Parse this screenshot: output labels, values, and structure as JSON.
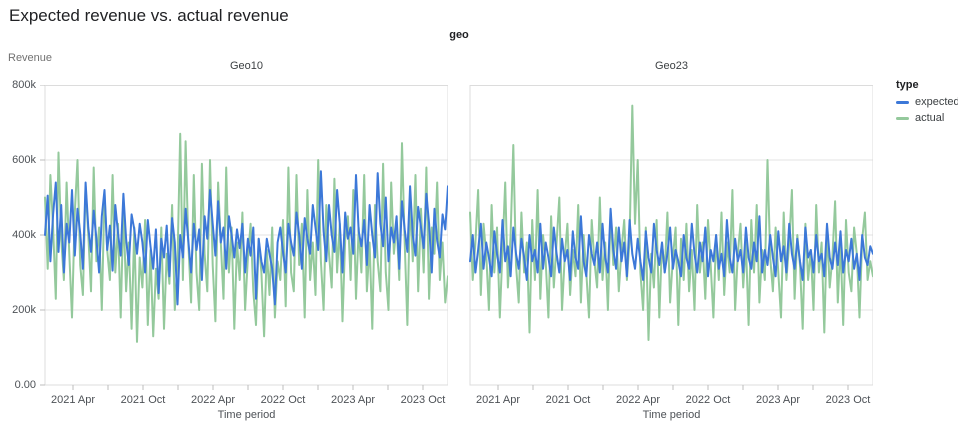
{
  "page": {
    "title": "Expected revenue vs. actual revenue"
  },
  "facet_header": "geo",
  "axes": {
    "y_title": "Revenue",
    "x_title": "Time period"
  },
  "legend": {
    "title": "type",
    "items": [
      {
        "label": "expected",
        "color": "#3c78d8"
      },
      {
        "label": "actual",
        "color": "#94c99c"
      }
    ]
  },
  "chart_data": {
    "type": "line",
    "title": "Expected revenue vs. actual revenue",
    "facet_by": "geo",
    "xlabel": "Time period",
    "ylabel": "Revenue",
    "ylim": [
      0,
      800000
    ],
    "values_unit": "thousands (k) of revenue",
    "x_unit": "weekly points, Jan 2021 - Dec 2023",
    "grid": "horizontal gridlines at 200k, 400k, 600k",
    "legend_position": "top-right",
    "y_tick_labels": [
      "800k",
      "600k",
      "400k",
      "200k",
      "0.00"
    ],
    "x_tick_labels": [
      "2021 Apr",
      "2021 Oct",
      "2022 Apr",
      "2022 Oct",
      "2023 Apr",
      "2023 Oct"
    ],
    "colors": {
      "expected": "#3c78d8",
      "actual": "#94c99c"
    },
    "facets": [
      {
        "name": "Geo10",
        "series": [
          {
            "name": "expected",
            "values": [
              400,
              505,
              330,
              455,
              540,
              355,
              480,
              300,
              430,
              380,
              520,
              345,
              470,
              405,
              310,
              540,
              420,
              355,
              465,
              390,
              300,
              450,
              520,
              360,
              425,
              305,
              480,
              405,
              345,
              510,
              390,
              320,
              455,
              415,
              350,
              430,
              380,
              300,
              440,
              370,
              310,
              415,
              245,
              390,
              340,
              425,
              290,
              445,
              380,
              215,
              400,
              340,
              470,
              385,
              300,
              430,
              360,
              415,
              280,
              450,
              390,
              520,
              430,
              345,
              490,
              380,
              420,
              310,
              450,
              400,
              340,
              415,
              365,
              430,
              300,
              390,
              345,
              420,
              230,
              390,
              330,
              300,
              390,
              350,
              310,
              215,
              380,
              420,
              355,
              300,
              430,
              380,
              345,
              460,
              400,
              310,
              445,
              390,
              350,
              480,
              420,
              360,
              570,
              410,
              330,
              480,
              400,
              355,
              520,
              430,
              300,
              460,
              390,
              420,
              350,
              560,
              410,
              370,
              440,
              320,
              480,
              400,
              340,
              565,
              430,
              370,
              500,
              330,
              420,
              380,
              450,
              310,
              490,
              415,
              355,
              530,
              400,
              345,
              475,
              420,
              365,
              510,
              430,
              300,
              470,
              385,
              340,
              455,
              415,
              530
            ]
          },
          {
            "name": "actual",
            "values": [
              500,
              310,
              560,
              420,
              230,
              620,
              390,
              280,
              540,
              350,
              180,
              460,
              600,
              320,
              240,
              530,
              400,
              250,
              580,
              330,
              420,
              200,
              510,
              360,
              280,
              560,
              300,
              430,
              180,
              470,
              250,
              380,
              150,
              420,
              115,
              340,
              260,
              440,
              160,
              360,
              130,
              310,
              230,
              420,
              150,
              350,
              270,
              480,
              200,
              330,
              670,
              280,
              650,
              380,
              220,
              560,
              300,
              200,
              590,
              350,
              250,
              600,
              320,
              170,
              540,
              380,
              230,
              580,
              300,
              420,
              150,
              380,
              280,
              460,
              200,
              340,
              430,
              250,
              160,
              390,
              300,
              130,
              360,
              240,
              420,
              180,
              330,
              280,
              440,
              210,
              580,
              300,
              250,
              560,
              320,
              430,
              180,
              520,
              280,
              380,
              240,
              600,
              330,
              200,
              480,
              350,
              260,
              550,
              300,
              430,
              170,
              390,
              450,
              280,
              520,
              230,
              420,
              300,
              560,
              250,
              380,
              150,
              480,
              330,
              250,
              590,
              300,
              200,
              540,
              350,
              430,
              280,
              645,
              380,
              160,
              500,
              330,
              560,
              250,
              470,
              300,
              580,
              230,
              420,
              350,
              540,
              280,
              380,
              220,
              290
            ]
          }
        ]
      },
      {
        "name": "Geo23",
        "series": [
          {
            "name": "expected",
            "values": [
              330,
              400,
              300,
              360,
              430,
              310,
              380,
              340,
              290,
              410,
              350,
              300,
              440,
              330,
              370,
              290,
              420,
              350,
              310,
              390,
              340,
              280,
              400,
              330,
              360,
              300,
              430,
              310,
              380,
              340,
              290,
              420,
              350,
              300,
              390,
              330,
              360,
              280,
              410,
              340,
              310,
              450,
              330,
              290,
              400,
              350,
              320,
              380,
              300,
              430,
              340,
              300,
              470,
              360,
              310,
              420,
              330,
              380,
              290,
              440,
              350,
              310,
              390,
              330,
              280,
              410,
              340,
              300,
              430,
              360,
              320,
              380,
              300,
              350,
              420,
              310,
              360,
              330,
              290,
              400,
              340,
              310,
              430,
              350,
              300,
              380,
              330,
              420,
              290,
              360,
              330,
              400,
              310,
              350,
              290,
              440,
              340,
              300,
              390,
              330,
              360,
              300,
              420,
              340,
              310,
              380,
              330,
              450,
              300,
              360,
              320,
              400,
              340,
              290,
              410,
              330,
              370,
              300,
              430,
              350,
              310,
              390,
              330,
              280,
              420,
              340,
              360,
              300,
              400,
              330,
              350,
              290,
              430,
              340,
              310,
              380,
              320,
              410,
              300,
              360,
              330,
              390,
              310,
              350,
              280,
              400,
              340,
              320,
              370,
              350
            ]
          },
          {
            "name": "actual",
            "values": [
              460,
              280,
              380,
              520,
              240,
              430,
              350,
              200,
              480,
              300,
              420,
              180,
              360,
              540,
              260,
              400,
              640,
              320,
              220,
              460,
              300,
              380,
              140,
              440,
              280,
              520,
              230,
              400,
              330,
              180,
              450,
              260,
              380,
              500,
              200,
              340,
              430,
              240,
              360,
              290,
              480,
              220,
              400,
              300,
              180,
              440,
              330,
              260,
              500,
              280,
              380,
              200,
              460,
              320,
              420,
              250,
              360,
              440,
              280,
              390,
              745,
              430,
              600,
              300,
              200,
              420,
              120,
              350,
              260,
              440,
              180,
              380,
              300,
              460,
              220,
              340,
              420,
              160,
              390,
              280,
              430,
              250,
              360,
              200,
              480,
              300,
              380,
              230,
              440,
              320,
              180,
              400,
              280,
              460,
              240,
              380,
              300,
              520,
              200,
              350,
              430,
              260,
              380,
              160,
              440,
              300,
              480,
              220,
              360,
              280,
              600,
              340,
              250,
              420,
              300,
              180,
              460,
              280,
              380,
              520,
              230,
              400,
              320,
              150,
              430,
              280,
              360,
              200,
              480,
              300,
              380,
              140,
              420,
              260,
              340,
              490,
              220,
              380,
              160,
              440,
              300,
              250,
              420,
              350,
              180,
              390,
              460,
              280,
              330,
              290
            ]
          }
        ]
      }
    ]
  }
}
